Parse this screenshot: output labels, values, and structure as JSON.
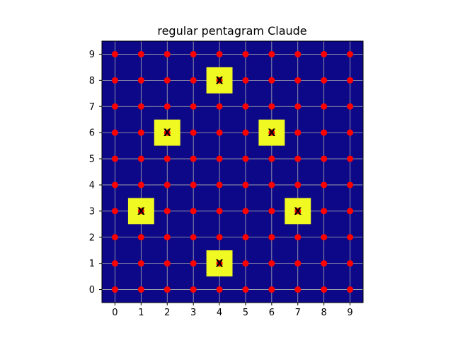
{
  "chart_data": {
    "type": "scatter",
    "title": "regular pentagram Claude",
    "xlabel": "",
    "ylabel": "",
    "xlim": [
      -0.5,
      9.5
    ],
    "ylim": [
      -0.5,
      9.5
    ],
    "x_ticks": [
      0,
      1,
      2,
      3,
      4,
      5,
      6,
      7,
      8,
      9
    ],
    "y_ticks": [
      0,
      1,
      2,
      3,
      4,
      5,
      6,
      7,
      8,
      9
    ],
    "grid": true,
    "background_color": "#0d0887",
    "grid_color": "#b0b0b0",
    "point_color": "#ff0000",
    "highlight_color": "#f0f921",
    "marker_label_color": "#000000",
    "grid_points": {
      "x_values": [
        0,
        1,
        2,
        3,
        4,
        5,
        6,
        7,
        8,
        9
      ],
      "y_values": [
        0,
        1,
        2,
        3,
        4,
        5,
        6,
        7,
        8,
        9
      ]
    },
    "highlighted_cells": [
      {
        "x": 4,
        "y": 8,
        "label": "X"
      },
      {
        "x": 2,
        "y": 6,
        "label": "X"
      },
      {
        "x": 6,
        "y": 6,
        "label": "X"
      },
      {
        "x": 1,
        "y": 3,
        "label": "X"
      },
      {
        "x": 7,
        "y": 3,
        "label": "X"
      },
      {
        "x": 4,
        "y": 1,
        "label": "X"
      }
    ]
  }
}
